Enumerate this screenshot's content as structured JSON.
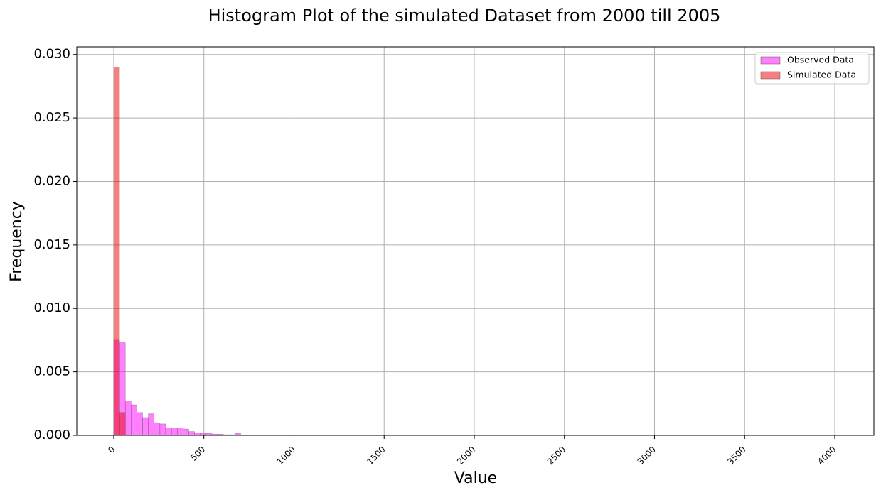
{
  "chart_data": {
    "type": "histogram",
    "title": "Histogram Plot of the simulated Dataset from 2000 till 2005",
    "x_label": "Value",
    "y_label": "Frequency",
    "series": [
      {
        "name": "Observed Data",
        "color": "#ff00ff",
        "bins": [
          0,
          32,
          64,
          96,
          128,
          160,
          192,
          224,
          256,
          288,
          320,
          352,
          384,
          416,
          448,
          480,
          512,
          544,
          576,
          608,
          640,
          672,
          704,
          736,
          768,
          800,
          832,
          864,
          896,
          928,
          960,
          992,
          1024,
          1056,
          1088,
          1120,
          1152,
          1184,
          1216,
          1248,
          1280,
          1312,
          1344,
          1376,
          1408,
          1440,
          1472,
          1504,
          1536,
          1568,
          1600,
          1632,
          1664,
          1696,
          1728,
          1760,
          1792,
          1824,
          1856,
          1888,
          1920,
          1952,
          1984,
          2016,
          2048,
          2080,
          2112,
          2144,
          2176,
          2208,
          2240,
          2272,
          2304,
          2336,
          2368,
          2400,
          2432,
          2464,
          2496,
          2528,
          2560,
          2592,
          2624,
          2656,
          2688,
          2720,
          2752,
          2784,
          2816,
          2848,
          2880,
          2912,
          2944,
          2976,
          3008,
          3040,
          3072,
          3104,
          3136,
          3168,
          3200,
          3232,
          3264,
          3296,
          3328,
          3360,
          3392,
          3424,
          3456,
          3488,
          3520,
          3552,
          3584,
          3616,
          3648,
          3680,
          3712,
          3744,
          3776,
          3808,
          3840,
          3872,
          3904,
          3936,
          3968,
          4000,
          4032
        ],
        "values": [
          0.0075,
          0.0073,
          0.0027,
          0.0024,
          0.0018,
          0.0014,
          0.0017,
          0.001,
          0.0009,
          0.0006,
          0.0006,
          0.0006,
          0.0005,
          0.0003,
          0.0002,
          0.0002,
          0.00015,
          0.0001,
          0.0001,
          5e-05,
          5e-05,
          0.00015,
          3e-05,
          3e-05,
          3e-05,
          3e-05,
          3e-05,
          3e-05,
          0,
          3e-05,
          3e-05,
          0,
          3e-05,
          3e-05,
          3e-05,
          3e-05,
          0,
          0,
          0,
          0,
          0,
          3e-05,
          3e-05,
          0,
          0,
          3e-05,
          0,
          3e-05,
          3e-05,
          3e-05,
          3e-05,
          0,
          0,
          0,
          0,
          0,
          0,
          0,
          3e-05,
          0,
          0,
          0,
          3e-05,
          0,
          0,
          0,
          0,
          0,
          3e-05,
          3e-05,
          0,
          0,
          0,
          3e-05,
          0,
          0,
          3e-05,
          0,
          0,
          0,
          0,
          0,
          0,
          0,
          3e-05,
          0,
          3e-05,
          0,
          0,
          0,
          0,
          0,
          0,
          0,
          3e-05,
          0,
          0,
          0,
          0,
          0,
          3e-05,
          0,
          0,
          0,
          0,
          0,
          0,
          3e-05,
          0,
          0,
          0,
          0,
          0,
          0,
          0,
          0,
          0,
          0,
          0,
          0,
          0,
          0,
          0,
          0,
          0,
          3e-05
        ]
      },
      {
        "name": "Simulated Data",
        "color": "#f00000",
        "bins": [
          0,
          32,
          64
        ],
        "values": [
          0.029,
          0.0018
        ]
      }
    ],
    "xlim": [
      -205,
      4217
    ],
    "ylim": [
      0,
      0.0306
    ],
    "xticks": [
      0,
      500,
      1000,
      1500,
      2000,
      2500,
      3000,
      3500,
      4000
    ],
    "yticks": [
      {
        "value": 0,
        "label": "0.000"
      },
      {
        "value": 0.005,
        "label": "0.005"
      },
      {
        "value": 0.01,
        "label": "0.010"
      },
      {
        "value": 0.015,
        "label": "0.015"
      },
      {
        "value": 0.02,
        "label": "0.020"
      },
      {
        "value": 0.025,
        "label": "0.025"
      },
      {
        "value": 0.03,
        "label": "0.030"
      }
    ],
    "grid": true,
    "legend": "upper right",
    "opacity": 0.5
  }
}
